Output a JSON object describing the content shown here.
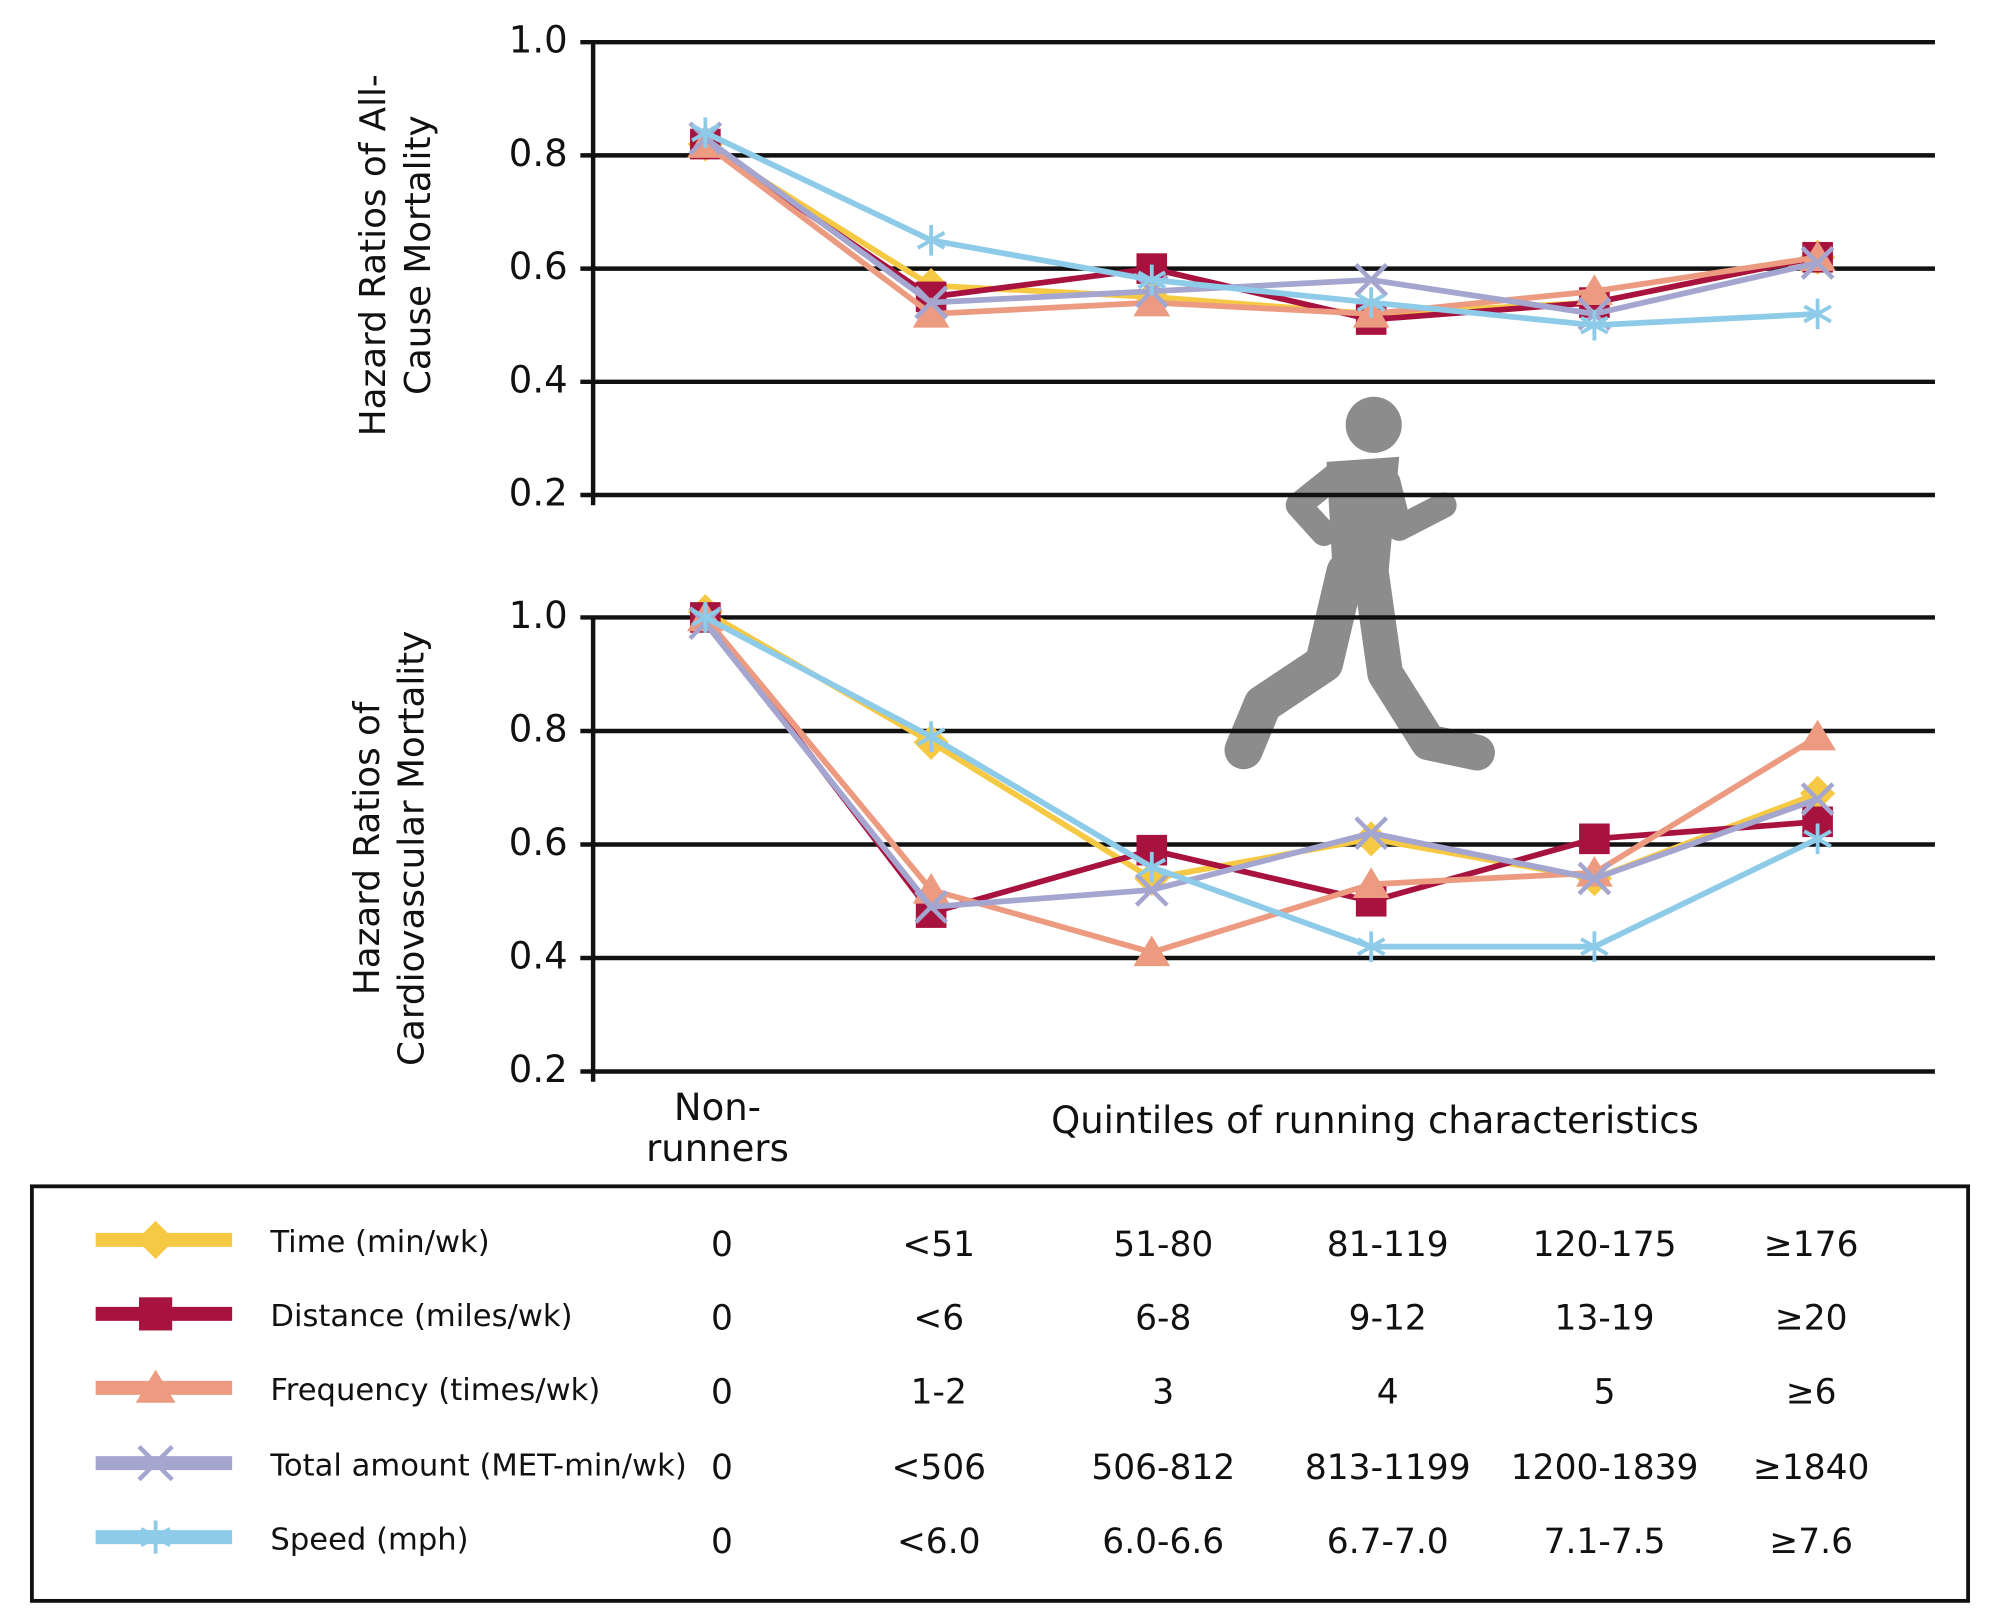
{
  "chart_data": [
    {
      "type": "line",
      "y_label": "Hazard Ratios of All-Cause Mortality",
      "categories": [
        null,
        null,
        null,
        null,
        null,
        null
      ],
      "ylim": [
        0.2,
        1.0
      ],
      "yticks": [
        0.2,
        0.4,
        0.6,
        0.8,
        {
          "value": 1.0,
          "label": "1.0"
        }
      ],
      "grid": true,
      "series": [
        {
          "color": "#f6c945",
          "marker": "diamond",
          "values": [
            0.82,
            0.57,
            0.55,
            0.52,
            0.54,
            0.62
          ]
        },
        {
          "color": "#a8123e",
          "marker": "square",
          "values": [
            0.82,
            0.55,
            0.6,
            0.51,
            0.54,
            0.62
          ]
        },
        {
          "color": "#ec9b80",
          "marker": "triangle",
          "values": [
            0.82,
            0.52,
            0.54,
            0.52,
            0.56,
            0.62
          ]
        },
        {
          "color": "#a4a6cf",
          "marker": "x",
          "values": [
            0.83,
            0.54,
            0.56,
            0.58,
            0.52,
            0.61
          ]
        },
        {
          "color": "#8ecbe8",
          "marker": "asterisk",
          "values": [
            0.84,
            0.65,
            0.58,
            0.54,
            0.5,
            0.52
          ]
        }
      ]
    },
    {
      "type": "line",
      "y_label": "Hazard Ratios of Cardiovascular Mortality",
      "x_label": "Quintiles of running characteristics",
      "categories": [
        "Non-runners",
        null,
        null,
        null,
        null,
        null
      ],
      "ylim": [
        0.2,
        1.0
      ],
      "yticks": [
        0.2,
        0.4,
        0.6,
        0.8,
        {
          "value": 1.0,
          "label": "1.0"
        }
      ],
      "grid": true,
      "series": [
        {
          "name": "Time (min/wk)",
          "color": "#f6c945",
          "marker": "diamond",
          "values": [
            1.01,
            0.78,
            0.54,
            0.61,
            0.54,
            0.69
          ]
        },
        {
          "name": "Distance (miles/wk)",
          "color": "#a8123e",
          "marker": "square",
          "values": [
            1.0,
            0.48,
            0.59,
            0.5,
            0.61,
            0.64
          ]
        },
        {
          "name": "Frequency (times/wk)",
          "color": "#ec9b80",
          "marker": "triangle",
          "values": [
            1.0,
            0.52,
            0.41,
            0.53,
            0.55,
            0.79
          ]
        },
        {
          "name": "Total amount (MET-min/wk)",
          "color": "#a4a6cf",
          "marker": "x",
          "values": [
            0.99,
            0.49,
            0.52,
            0.62,
            0.54,
            0.68
          ]
        },
        {
          "name": "Speed (mph)",
          "color": "#8ecbe8",
          "marker": "asterisk",
          "values": [
            1.0,
            0.79,
            0.56,
            0.42,
            0.42,
            0.61
          ]
        }
      ]
    }
  ],
  "table": {
    "rows": [
      [
        "0",
        "<51",
        "51-80",
        "81-119",
        "120-175",
        "≥176"
      ],
      [
        "0",
        "<6",
        "6-8",
        "9-12",
        "13-19",
        "≥20"
      ],
      [
        "0",
        "1-2",
        "3",
        "4",
        "5",
        "≥6"
      ],
      [
        "0",
        "<506",
        "506-812",
        "813-1199",
        "1200-1839",
        "≥1840"
      ],
      [
        "0",
        "<6.0",
        "6.0-6.6",
        "6.7-7.0",
        "7.1-7.5",
        "≥7.6"
      ]
    ]
  }
}
